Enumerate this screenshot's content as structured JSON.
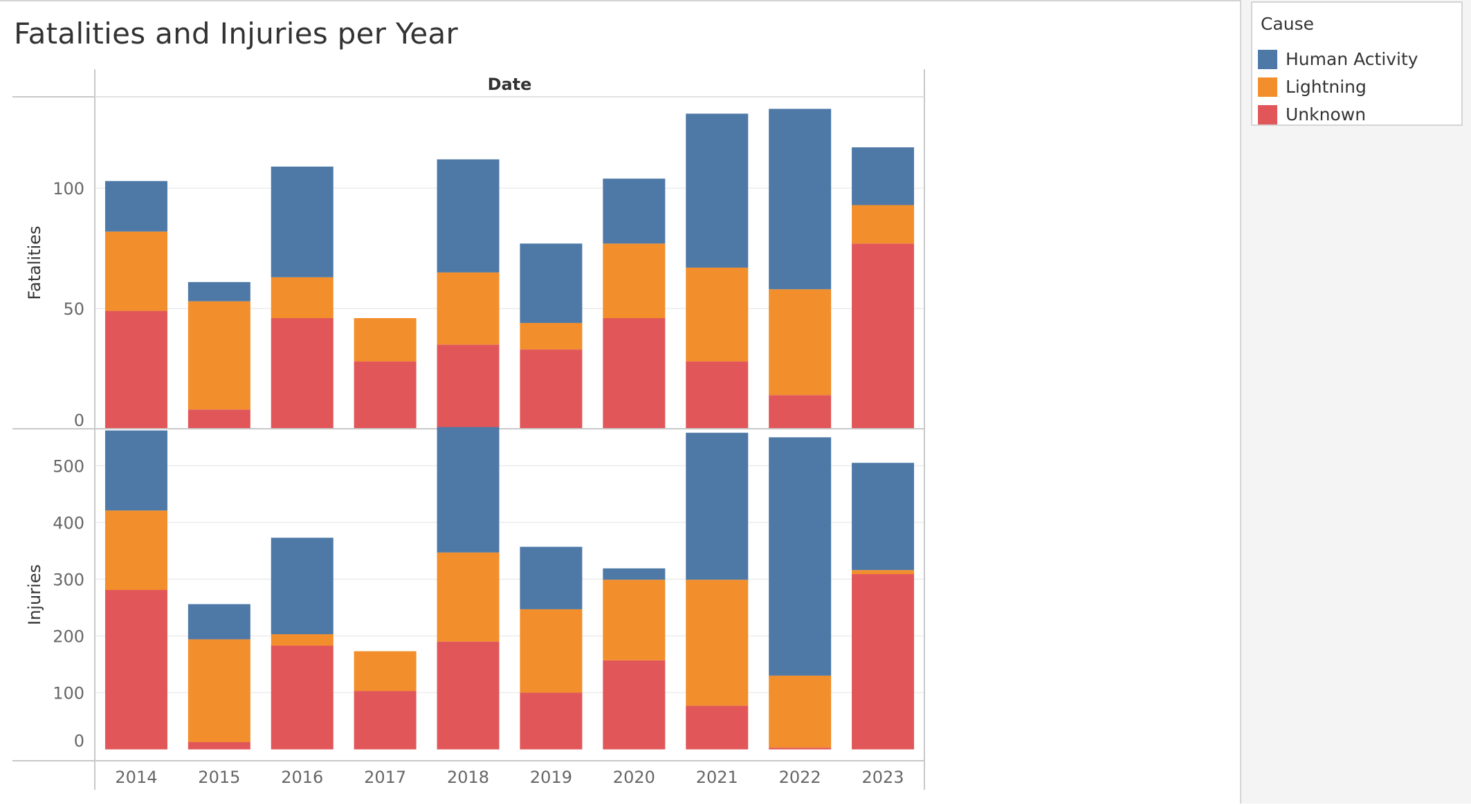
{
  "title": "Fatalities and Injuries per Year",
  "legend": {
    "title": "Cause",
    "items": [
      {
        "label": "Human Activity",
        "color": "#4e79a7"
      },
      {
        "label": "Lightning",
        "color": "#f28e2b"
      },
      {
        "label": "Unknown",
        "color": "#e15759"
      }
    ]
  },
  "chart_data": [
    {
      "type": "bar",
      "stacked": true,
      "column_header": "Date",
      "ylabel": "Fatalities",
      "ylim": [
        0,
        138
      ],
      "yticks": [
        0,
        50,
        100
      ],
      "grid": true,
      "categories": [
        "2014",
        "2015",
        "2016",
        "2017",
        "2018",
        "2019",
        "2020",
        "2021",
        "2022",
        "2023"
      ],
      "series": [
        {
          "name": "Unknown",
          "color": "#e15759",
          "values": [
            49,
            8,
            46,
            28,
            35,
            33,
            46,
            28,
            14,
            77
          ]
        },
        {
          "name": "Lightning",
          "color": "#f28e2b",
          "values": [
            33,
            45,
            17,
            18,
            30,
            11,
            31,
            39,
            44,
            16
          ]
        },
        {
          "name": "Human Activity",
          "color": "#4e79a7",
          "values": [
            21,
            8,
            46,
            0,
            47,
            33,
            27,
            64,
            75,
            24
          ]
        }
      ]
    },
    {
      "type": "bar",
      "stacked": true,
      "ylabel": "Injuries",
      "ylim": [
        -20,
        565
      ],
      "yticks": [
        0,
        100,
        200,
        300,
        400,
        500
      ],
      "grid": true,
      "categories": [
        "2014",
        "2015",
        "2016",
        "2017",
        "2018",
        "2019",
        "2020",
        "2021",
        "2022",
        "2023"
      ],
      "series": [
        {
          "name": "Unknown",
          "color": "#e15759",
          "values": [
            281,
            13,
            183,
            103,
            190,
            100,
            157,
            77,
            3,
            309
          ]
        },
        {
          "name": "Lightning",
          "color": "#f28e2b",
          "values": [
            140,
            181,
            20,
            70,
            157,
            147,
            142,
            222,
            127,
            7
          ]
        },
        {
          "name": "Human Activity",
          "color": "#4e79a7",
          "values": [
            141,
            62,
            170,
            0,
            221,
            110,
            20,
            259,
            420,
            189
          ]
        }
      ]
    }
  ]
}
